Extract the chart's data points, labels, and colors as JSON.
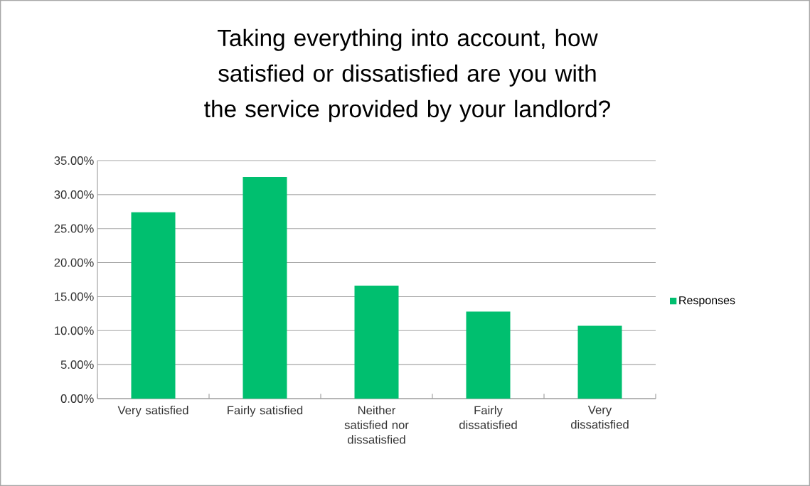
{
  "chart_data": {
    "type": "bar",
    "title": "Taking everything into account, how satisfied or dissatisfied are you with the service provided by your landlord?",
    "categories": [
      "Very satisfied",
      "Fairly satisfied",
      "Neither satisfied nor dissatisfied",
      "Fairly dissatisfied",
      "Very dissatisfied"
    ],
    "series": [
      {
        "name": "Responses",
        "color": "#00bf6f",
        "values": [
          27.4,
          32.6,
          16.6,
          12.8,
          10.7
        ]
      }
    ],
    "ylim": [
      0,
      35
    ],
    "yticks": [
      {
        "value": 0,
        "label": "0.00%"
      },
      {
        "value": 5,
        "label": "5.00%"
      },
      {
        "value": 10,
        "label": "10.00%"
      },
      {
        "value": 15,
        "label": "15.00%"
      },
      {
        "value": 20,
        "label": "20.00%"
      },
      {
        "value": 25,
        "label": "25.00%"
      },
      {
        "value": 30,
        "label": "30.00%"
      },
      {
        "value": 35,
        "label": "35.00%"
      }
    ],
    "grid": "y",
    "legend": "right"
  }
}
